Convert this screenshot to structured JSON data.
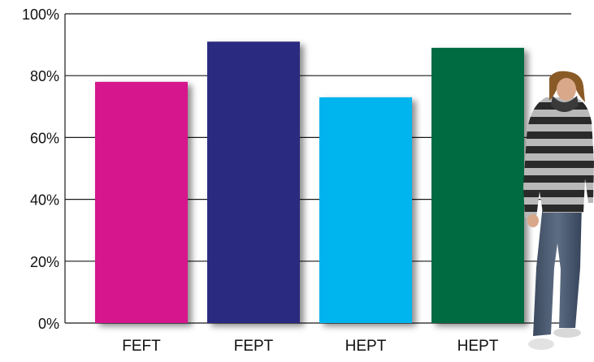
{
  "chart_data": {
    "type": "bar",
    "categories": [
      "FEFT",
      "FEPT",
      "HEPT",
      "HEPT"
    ],
    "values": [
      78,
      91,
      73,
      89
    ],
    "bar_colors": [
      "#d5128c",
      "#2b2a80",
      "#00b4ee",
      "#006a41"
    ],
    "ylim": [
      0,
      100
    ],
    "yticks": [
      0,
      20,
      40,
      60,
      80,
      100
    ],
    "ytick_format": "{v}%",
    "grid": true,
    "title": "",
    "xlabel": "",
    "ylabel": ""
  },
  "illustration": {
    "subject": "standing-student-photo"
  }
}
